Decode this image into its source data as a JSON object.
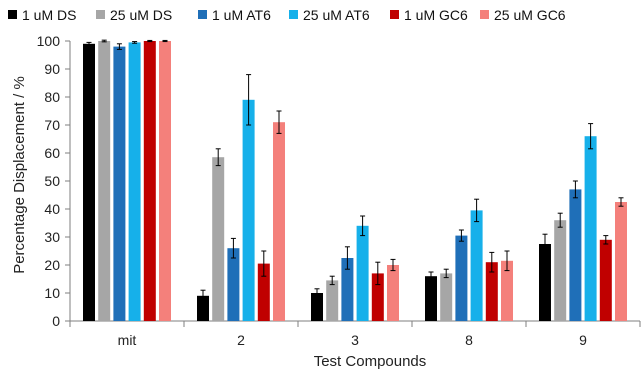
{
  "chart_data": {
    "type": "bar",
    "categories": [
      "mit",
      "2",
      "3",
      "8",
      "9"
    ],
    "series": [
      {
        "name": "1 uM DS",
        "color": "#000000",
        "values": [
          99,
          9,
          10,
          16,
          27.5
        ],
        "errors": [
          0.5,
          2,
          1.5,
          1.5,
          3.5
        ]
      },
      {
        "name": "25 uM DS",
        "color": "#a6a6a6",
        "values": [
          100,
          58.5,
          14.5,
          17,
          36
        ],
        "errors": [
          0.3,
          3,
          1.5,
          1.5,
          2.5
        ]
      },
      {
        "name": "1 uM AT6",
        "color": "#1f6fb8",
        "values": [
          98,
          26,
          22.5,
          30.5,
          47
        ],
        "errors": [
          1,
          3.5,
          4,
          2,
          3
        ]
      },
      {
        "name": "25 uM AT6",
        "color": "#16b0ea",
        "values": [
          99.5,
          79,
          34,
          39.5,
          66
        ],
        "errors": [
          0.3,
          9,
          3.5,
          4,
          4.5
        ]
      },
      {
        "name": "1 uM GC6",
        "color": "#c00000",
        "values": [
          100,
          20.5,
          17,
          21,
          29
        ],
        "errors": [
          0.2,
          4.5,
          4,
          3.5,
          1.5
        ]
      },
      {
        "name": "25 uM GC6",
        "color": "#f4807b",
        "values": [
          100,
          71,
          20,
          21.5,
          42.5
        ],
        "errors": [
          0.2,
          4,
          2,
          3.5,
          1.5
        ]
      }
    ],
    "xlabel": "Test Compounds",
    "ylabel": "Percentage Displacement / %",
    "ylim": [
      0,
      100
    ],
    "yticks": [
      0,
      10,
      20,
      30,
      40,
      50,
      60,
      70,
      80,
      90,
      100
    ],
    "grid": false,
    "legend_position": "top"
  }
}
